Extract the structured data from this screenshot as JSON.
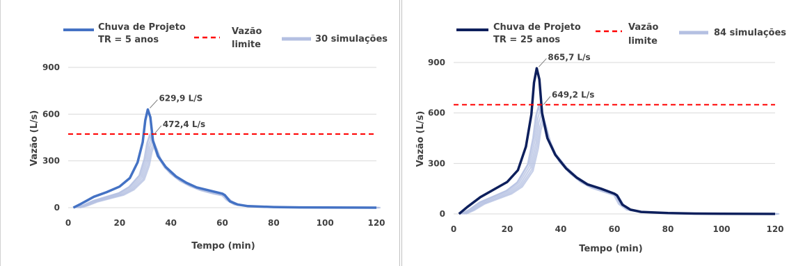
{
  "chart_data": [
    {
      "type": "line",
      "xlabel": "Tempo (min)",
      "ylabel": "Vazão (L/s)",
      "xlim": [
        0,
        120
      ],
      "ylim": [
        0,
        900
      ],
      "x_ticks": [
        "0",
        "20",
        "40",
        "60",
        "80",
        "100",
        "120"
      ],
      "y_ticks": [
        "0",
        "300",
        "600",
        "900"
      ],
      "grid": "horizontal",
      "legend_position": "top",
      "legend": {
        "design": [
          "Chuva de Projeto",
          "TR = 5 anos"
        ],
        "limit": [
          "Vazão",
          "limite"
        ],
        "sims": "30 simulações"
      },
      "annotations": {
        "design_peak": "629,9 L/S",
        "limit_peak": "472,4 L/s"
      },
      "limit_value": 472.4,
      "design_peak": {
        "x": 31,
        "y": 629.9
      },
      "sim_peak": {
        "x": 33,
        "y": 472.4
      },
      "series": [
        {
          "name": "Chuva de Projeto TR = 5 anos",
          "color": "#4472c4",
          "x": [
            2,
            5,
            10,
            15,
            20,
            24,
            27,
            29,
            30,
            31,
            32,
            33,
            35,
            38,
            42,
            46,
            50,
            55,
            60,
            61,
            63,
            66,
            70,
            80,
            90,
            100,
            110,
            120
          ],
          "y": [
            0,
            25,
            70,
            100,
            135,
            190,
            290,
            420,
            560,
            629.9,
            580,
            430,
            330,
            260,
            200,
            160,
            130,
            110,
            90,
            80,
            40,
            20,
            10,
            4,
            2,
            1,
            0.5,
            0
          ]
        },
        {
          "name": "Vazão limite",
          "color": "#ff0000",
          "dashed": true,
          "x": [
            0,
            120
          ],
          "y": [
            472.4,
            472.4
          ]
        },
        {
          "name": "30 simulações",
          "color": "#b4c0e2",
          "x": [
            3,
            6,
            10,
            15,
            20,
            24,
            28,
            30,
            31,
            32,
            33,
            35,
            38,
            42,
            46,
            50,
            55,
            60,
            62,
            65,
            70,
            80,
            90,
            100,
            110,
            120
          ],
          "y": [
            0,
            15,
            45,
            70,
            95,
            135,
            210,
            320,
            420,
            472.4,
            440,
            340,
            260,
            200,
            160,
            130,
            105,
            85,
            50,
            20,
            10,
            4,
            2,
            1,
            0.5,
            0
          ]
        }
      ]
    },
    {
      "type": "line",
      "xlabel": "Tempo (min)",
      "ylabel": "Vazão (L/s)",
      "xlim": [
        0,
        120
      ],
      "ylim": [
        0,
        900
      ],
      "x_ticks": [
        "0",
        "20",
        "40",
        "60",
        "80",
        "100",
        "120"
      ],
      "y_ticks": [
        "0",
        "300",
        "600",
        "900"
      ],
      "grid": "horizontal",
      "legend_position": "top",
      "legend": {
        "design": [
          "Chuva de Projeto",
          "TR = 25 anos"
        ],
        "limit": [
          "Vazão",
          "limite"
        ],
        "sims": "84 simulações"
      },
      "annotations": {
        "design_peak": "865,7 L/s",
        "limit_peak": "649,2 L/s"
      },
      "limit_value": 649.2,
      "design_peak": {
        "x": 31,
        "y": 865.7
      },
      "sim_peak": {
        "x": 33,
        "y": 649.2
      },
      "series": [
        {
          "name": "Chuva de Projeto TR = 25 anos",
          "color": "#0d1f5c",
          "x": [
            2,
            5,
            10,
            15,
            20,
            24,
            27,
            29,
            30,
            31,
            32,
            33,
            35,
            38,
            42,
            46,
            50,
            55,
            60,
            61,
            63,
            66,
            70,
            80,
            90,
            100,
            110,
            120
          ],
          "y": [
            0,
            40,
            100,
            145,
            190,
            260,
            400,
            590,
            780,
            865.7,
            800,
            600,
            450,
            350,
            270,
            215,
            175,
            150,
            120,
            110,
            55,
            25,
            12,
            5,
            2,
            1,
            0.5,
            0
          ]
        },
        {
          "name": "Vazão limite",
          "color": "#ff0000",
          "dashed": true,
          "x": [
            0,
            120
          ],
          "y": [
            649.2,
            649.2
          ]
        },
        {
          "name": "84 simulações",
          "color": "#b4c0e2",
          "x": [
            3,
            6,
            10,
            15,
            20,
            24,
            28,
            30,
            31,
            32,
            33,
            35,
            38,
            42,
            46,
            50,
            55,
            60,
            62,
            65,
            70,
            80,
            90,
            100,
            110,
            120
          ],
          "y": [
            0,
            25,
            70,
            105,
            140,
            190,
            300,
            460,
            590,
            649.2,
            610,
            470,
            360,
            280,
            220,
            180,
            150,
            120,
            60,
            25,
            12,
            5,
            2,
            1,
            0.5,
            0
          ]
        }
      ]
    }
  ]
}
